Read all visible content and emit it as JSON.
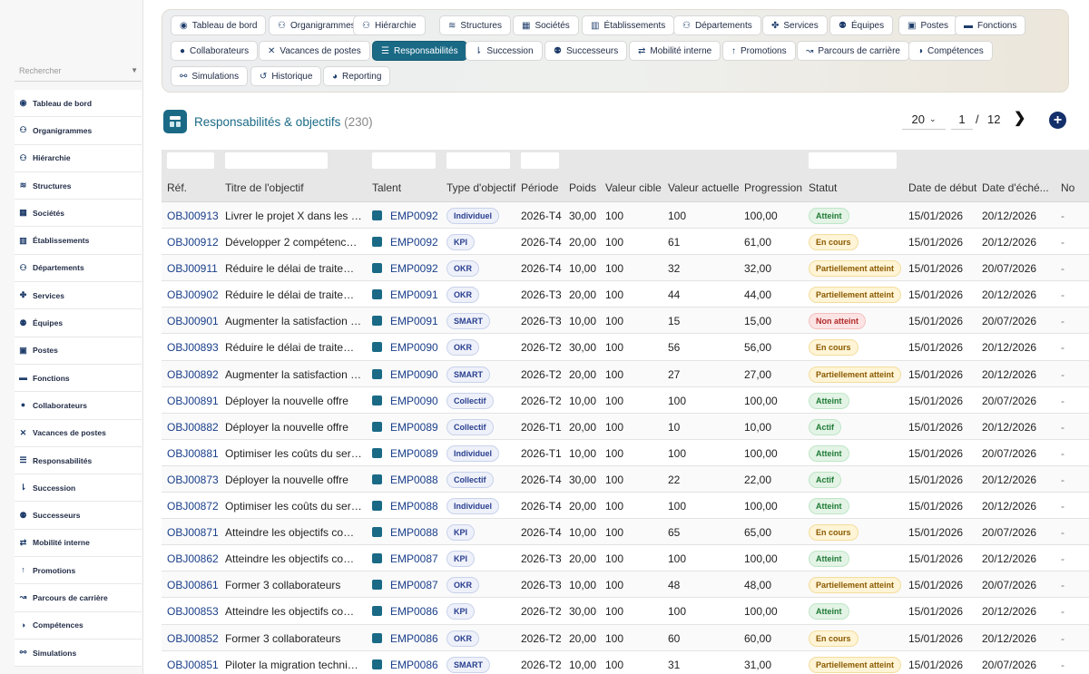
{
  "sidebar": {
    "search_placeholder": "Rechercher",
    "items": [
      {
        "label": "Tableau de bord",
        "icon": "dashboard-icon"
      },
      {
        "label": "Organigrammes",
        "icon": "org-chart-icon"
      },
      {
        "label": "Hiérarchie",
        "icon": "hierarchy-icon"
      },
      {
        "label": "Structures",
        "icon": "layers-icon"
      },
      {
        "label": "Sociétés",
        "icon": "company-icon"
      },
      {
        "label": "Établissements",
        "icon": "building-icon"
      },
      {
        "label": "Départements",
        "icon": "department-icon"
      },
      {
        "label": "Services",
        "icon": "services-icon"
      },
      {
        "label": "Équipes",
        "icon": "team-icon"
      },
      {
        "label": "Postes",
        "icon": "badge-icon"
      },
      {
        "label": "Fonctions",
        "icon": "briefcase-icon"
      },
      {
        "label": "Collaborateurs",
        "icon": "user-icon"
      },
      {
        "label": "Vacances de postes",
        "icon": "vacancy-icon"
      },
      {
        "label": "Responsabilités",
        "icon": "list-icon"
      },
      {
        "label": "Succession",
        "icon": "succession-icon"
      },
      {
        "label": "Successeurs",
        "icon": "successors-icon"
      },
      {
        "label": "Mobilité interne",
        "icon": "swap-icon"
      },
      {
        "label": "Promotions",
        "icon": "arrow-up-icon"
      },
      {
        "label": "Parcours de carrière",
        "icon": "career-path-icon"
      },
      {
        "label": "Compétences",
        "icon": "skills-icon"
      },
      {
        "label": "Simulations",
        "icon": "simulation-icon"
      }
    ]
  },
  "nav": {
    "tabs": [
      {
        "label": "Tableau de bord",
        "icon": "dashboard-icon"
      },
      {
        "label": "Organigrammes",
        "icon": "org-chart-icon"
      },
      {
        "label": "Hiérarchie",
        "icon": "hierarchy-icon"
      },
      {
        "label": "Structures",
        "icon": "layers-icon"
      },
      {
        "label": "Sociétés",
        "icon": "company-icon"
      },
      {
        "label": "Établissements",
        "icon": "building-icon"
      },
      {
        "label": "Départements",
        "icon": "department-icon"
      },
      {
        "label": "Services",
        "icon": "services-icon"
      },
      {
        "label": "Équipes",
        "icon": "team-icon"
      },
      {
        "label": "Postes",
        "icon": "badge-icon"
      },
      {
        "label": "Fonctions",
        "icon": "briefcase-icon"
      },
      {
        "label": "Collaborateurs",
        "icon": "user-icon"
      },
      {
        "label": "Vacances de postes",
        "icon": "vacancy-icon"
      },
      {
        "label": "Responsabilités",
        "icon": "list-icon",
        "active": true
      },
      {
        "label": "Succession",
        "icon": "succession-icon"
      },
      {
        "label": "Successeurs",
        "icon": "successors-icon"
      },
      {
        "label": "Mobilité interne",
        "icon": "swap-icon"
      },
      {
        "label": "Promotions",
        "icon": "arrow-up-icon"
      },
      {
        "label": "Parcours de carrière",
        "icon": "career-path-icon"
      },
      {
        "label": "Compétences",
        "icon": "skills-icon"
      },
      {
        "label": "Simulations",
        "icon": "simulation-icon"
      },
      {
        "label": "Historique",
        "icon": "history-icon"
      },
      {
        "label": "Reporting",
        "icon": "chart-icon"
      }
    ]
  },
  "header": {
    "title": "Responsabilités & objectifs",
    "count": "(230)",
    "page_size": "20",
    "current_page": "1",
    "separator": "/",
    "total_pages": "12",
    "next_icon": "chevron-right-icon",
    "add_icon": "plus-circle-icon"
  },
  "table": {
    "columns": [
      "Réf.",
      "Titre de l'objectif",
      "Talent",
      "Type d'objectif",
      "Période",
      "Poids",
      "Valeur cible",
      "Valeur actuelle",
      "Progression",
      "Statut",
      "Date de début",
      "Date d'éché...",
      "No"
    ],
    "rows": [
      {
        "ref": "OBJ00913",
        "title": "Livrer le projet X dans les d...",
        "talent": "EMP0092",
        "type": "Individuel",
        "period": "2026-T4",
        "weight": "30,00",
        "target": "100",
        "current": "100",
        "progress": "100,00",
        "status": "Atteint",
        "status_kind": "atteint",
        "start": "15/01/2026",
        "due": "20/12/2026",
        "note": "-"
      },
      {
        "ref": "OBJ00912",
        "title": "Développer 2 compétences ...",
        "talent": "EMP0092",
        "type": "KPI",
        "period": "2026-T4",
        "weight": "20,00",
        "target": "100",
        "current": "61",
        "progress": "61,00",
        "status": "En cours",
        "status_kind": "encours",
        "start": "15/01/2026",
        "due": "20/12/2026",
        "note": "-"
      },
      {
        "ref": "OBJ00911",
        "title": "Réduire le délai de traitement",
        "talent": "EMP0092",
        "type": "OKR",
        "period": "2026-T4",
        "weight": "10,00",
        "target": "100",
        "current": "32",
        "progress": "32,00",
        "status": "Partiellement atteint",
        "status_kind": "partiel",
        "start": "15/01/2026",
        "due": "20/07/2026",
        "note": "-"
      },
      {
        "ref": "OBJ00902",
        "title": "Réduire le délai de traitement",
        "talent": "EMP0091",
        "type": "OKR",
        "period": "2026-T3",
        "weight": "20,00",
        "target": "100",
        "current": "44",
        "progress": "44,00",
        "status": "Partiellement atteint",
        "status_kind": "partiel",
        "start": "15/01/2026",
        "due": "20/12/2026",
        "note": "-"
      },
      {
        "ref": "OBJ00901",
        "title": "Augmenter la satisfaction cli...",
        "talent": "EMP0091",
        "type": "SMART",
        "period": "2026-T3",
        "weight": "10,00",
        "target": "100",
        "current": "15",
        "progress": "15,00",
        "status": "Non atteint",
        "status_kind": "non",
        "start": "15/01/2026",
        "due": "20/07/2026",
        "note": "-"
      },
      {
        "ref": "OBJ00893",
        "title": "Réduire le délai de traitement",
        "talent": "EMP0090",
        "type": "OKR",
        "period": "2026-T2",
        "weight": "30,00",
        "target": "100",
        "current": "56",
        "progress": "56,00",
        "status": "En cours",
        "status_kind": "encours",
        "start": "15/01/2026",
        "due": "20/12/2026",
        "note": "-"
      },
      {
        "ref": "OBJ00892",
        "title": "Augmenter la satisfaction cli...",
        "talent": "EMP0090",
        "type": "SMART",
        "period": "2026-T2",
        "weight": "20,00",
        "target": "100",
        "current": "27",
        "progress": "27,00",
        "status": "Partiellement atteint",
        "status_kind": "partiel",
        "start": "15/01/2026",
        "due": "20/12/2026",
        "note": "-"
      },
      {
        "ref": "OBJ00891",
        "title": "Déployer la nouvelle offre",
        "talent": "EMP0090",
        "type": "Collectif",
        "period": "2026-T2",
        "weight": "10,00",
        "target": "100",
        "current": "100",
        "progress": "100,00",
        "status": "Atteint",
        "status_kind": "atteint",
        "start": "15/01/2026",
        "due": "20/07/2026",
        "note": "-"
      },
      {
        "ref": "OBJ00882",
        "title": "Déployer la nouvelle offre",
        "talent": "EMP0089",
        "type": "Collectif",
        "period": "2026-T1",
        "weight": "20,00",
        "target": "100",
        "current": "10",
        "progress": "10,00",
        "status": "Actif",
        "status_kind": "actif",
        "start": "15/01/2026",
        "due": "20/12/2026",
        "note": "-"
      },
      {
        "ref": "OBJ00881",
        "title": "Optimiser les coûts du service",
        "talent": "EMP0089",
        "type": "Individuel",
        "period": "2026-T1",
        "weight": "10,00",
        "target": "100",
        "current": "100",
        "progress": "100,00",
        "status": "Atteint",
        "status_kind": "atteint",
        "start": "15/01/2026",
        "due": "20/07/2026",
        "note": "-"
      },
      {
        "ref": "OBJ00873",
        "title": "Déployer la nouvelle offre",
        "talent": "EMP0088",
        "type": "Collectif",
        "period": "2026-T4",
        "weight": "30,00",
        "target": "100",
        "current": "22",
        "progress": "22,00",
        "status": "Actif",
        "status_kind": "actif",
        "start": "15/01/2026",
        "due": "20/12/2026",
        "note": "-"
      },
      {
        "ref": "OBJ00872",
        "title": "Optimiser les coûts du service",
        "talent": "EMP0088",
        "type": "Individuel",
        "period": "2026-T4",
        "weight": "20,00",
        "target": "100",
        "current": "100",
        "progress": "100,00",
        "status": "Atteint",
        "status_kind": "atteint",
        "start": "15/01/2026",
        "due": "20/12/2026",
        "note": "-"
      },
      {
        "ref": "OBJ00871",
        "title": "Atteindre les objectifs comm...",
        "talent": "EMP0088",
        "type": "KPI",
        "period": "2026-T4",
        "weight": "10,00",
        "target": "100",
        "current": "65",
        "progress": "65,00",
        "status": "En cours",
        "status_kind": "encours",
        "start": "15/01/2026",
        "due": "20/07/2026",
        "note": "-"
      },
      {
        "ref": "OBJ00862",
        "title": "Atteindre les objectifs comm...",
        "talent": "EMP0087",
        "type": "KPI",
        "period": "2026-T3",
        "weight": "20,00",
        "target": "100",
        "current": "100",
        "progress": "100,00",
        "status": "Atteint",
        "status_kind": "atteint",
        "start": "15/01/2026",
        "due": "20/12/2026",
        "note": "-"
      },
      {
        "ref": "OBJ00861",
        "title": "Former 3 collaborateurs",
        "talent": "EMP0087",
        "type": "OKR",
        "period": "2026-T3",
        "weight": "10,00",
        "target": "100",
        "current": "48",
        "progress": "48,00",
        "status": "Partiellement atteint",
        "status_kind": "partiel",
        "start": "15/01/2026",
        "due": "20/07/2026",
        "note": "-"
      },
      {
        "ref": "OBJ00853",
        "title": "Atteindre les objectifs comm...",
        "talent": "EMP0086",
        "type": "KPI",
        "period": "2026-T2",
        "weight": "30,00",
        "target": "100",
        "current": "100",
        "progress": "100,00",
        "status": "Atteint",
        "status_kind": "atteint",
        "start": "15/01/2026",
        "due": "20/12/2026",
        "note": "-"
      },
      {
        "ref": "OBJ00852",
        "title": "Former 3 collaborateurs",
        "talent": "EMP0086",
        "type": "OKR",
        "period": "2026-T2",
        "weight": "20,00",
        "target": "100",
        "current": "60",
        "progress": "60,00",
        "status": "En cours",
        "status_kind": "encours",
        "start": "15/01/2026",
        "due": "20/12/2026",
        "note": "-"
      },
      {
        "ref": "OBJ00851",
        "title": "Piloter la migration technique",
        "talent": "EMP0086",
        "type": "SMART",
        "period": "2026-T2",
        "weight": "10,00",
        "target": "100",
        "current": "31",
        "progress": "31,00",
        "status": "Partiellement atteint",
        "status_kind": "partiel",
        "start": "15/01/2026",
        "due": "20/07/2026",
        "note": "-"
      }
    ]
  },
  "colors": {
    "accent": "#1a6a86",
    "link": "#1a3f8a",
    "add_button": "#13306b"
  }
}
